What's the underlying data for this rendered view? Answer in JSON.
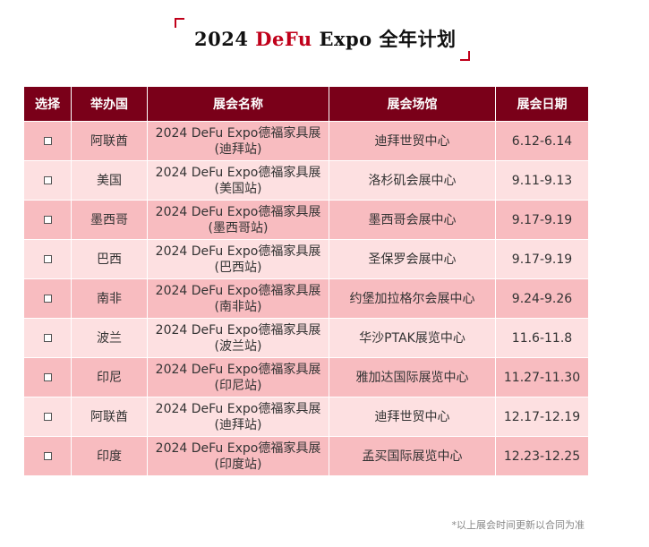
{
  "header": {
    "year": "2024",
    "brand": "DeFu",
    "expo": "Expo",
    "suffix": "全年计划",
    "brand_color": "#c0001a"
  },
  "table": {
    "columns": [
      "选择",
      "举办国",
      "展会名称",
      "展会场馆",
      "展会日期"
    ],
    "rows": [
      {
        "checkbox": "□",
        "country": "阿联酋",
        "name_line1": "2024 DeFu Expo德福家具展",
        "name_line2": "(迪拜站)",
        "venue": "迪拜世贸中心",
        "date": "6.12-6.14"
      },
      {
        "checkbox": "□",
        "country": "美国",
        "name_line1": "2024 DeFu Expo德福家具展",
        "name_line2": "(美国站)",
        "venue": "洛杉矶会展中心",
        "date": "9.11-9.13"
      },
      {
        "checkbox": "□",
        "country": "墨西哥",
        "name_line1": "2024 DeFu Expo德福家具展",
        "name_line2": "(墨西哥站)",
        "venue": "墨西哥会展中心",
        "date": "9.17-9.19"
      },
      {
        "checkbox": "□",
        "country": "巴西",
        "name_line1": "2024 DeFu Expo德福家具展",
        "name_line2": "(巴西站)",
        "venue": "圣保罗会展中心",
        "date": "9.17-9.19"
      },
      {
        "checkbox": "□",
        "country": "南非",
        "name_line1": "2024 DeFu Expo德福家具展",
        "name_line2": "(南非站)",
        "venue": "约堡加拉格尔会展中心",
        "date": "9.24-9.26"
      },
      {
        "checkbox": "□",
        "country": "波兰",
        "name_line1": "2024 DeFu Expo德福家具展",
        "name_line2": "(波兰站)",
        "venue": "华沙PTAK展览中心",
        "date": "11.6-11.8"
      },
      {
        "checkbox": "□",
        "country": "印尼",
        "name_line1": "2024 DeFu Expo德福家具展",
        "name_line2": "(印尼站)",
        "venue": "雅加达国际展览中心",
        "date": "11.27-11.30"
      },
      {
        "checkbox": "□",
        "country": "阿联酋",
        "name_line1": "2024 DeFu Expo德福家具展",
        "name_line2": "(迪拜站)",
        "venue": "迪拜世贸中心",
        "date": "12.17-12.19"
      },
      {
        "checkbox": "□",
        "country": "印度",
        "name_line1": "2024 DeFu Expo德福家具展",
        "name_line2": "(印度站)",
        "venue": "孟买国际展览中心",
        "date": "12.23-12.25"
      }
    ],
    "header_color": "#7a0019",
    "row_color_odd": "#f8bcc0",
    "row_color_even": "#fde0e1"
  },
  "footnote": "*以上展会时间更新以合同为准"
}
